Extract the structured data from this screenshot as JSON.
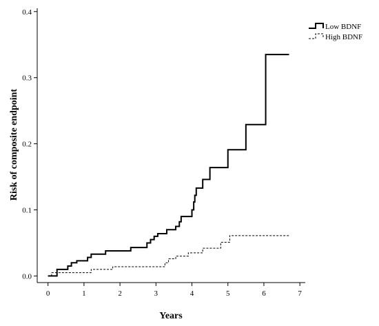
{
  "chart_data": {
    "type": "line",
    "step": true,
    "xlabel": "Years",
    "ylabel": "Risk of composite endpoint",
    "xlim": [
      -0.3,
      7.15
    ],
    "ylim": [
      -0.01,
      0.405
    ],
    "xticks": [
      0,
      1,
      2,
      3,
      4,
      5,
      6,
      7
    ],
    "yticks": [
      0.0,
      0.1,
      0.2,
      0.3,
      0.4
    ],
    "ytick_labels": [
      "0.0",
      "0.1",
      "0.2",
      "0.3",
      "0.4"
    ],
    "grid": false,
    "legend_position": "top-right",
    "series": [
      {
        "name": "Low BDNF",
        "style": "solid-thick",
        "color": "#000000",
        "points": [
          [
            0.0,
            0.0
          ],
          [
            0.25,
            0.0
          ],
          [
            0.25,
            0.01
          ],
          [
            0.55,
            0.01
          ],
          [
            0.55,
            0.015
          ],
          [
            0.65,
            0.015
          ],
          [
            0.65,
            0.02
          ],
          [
            0.8,
            0.02
          ],
          [
            0.8,
            0.023
          ],
          [
            1.1,
            0.023
          ],
          [
            1.1,
            0.028
          ],
          [
            1.2,
            0.028
          ],
          [
            1.2,
            0.033
          ],
          [
            1.6,
            0.033
          ],
          [
            1.6,
            0.038
          ],
          [
            2.3,
            0.038
          ],
          [
            2.3,
            0.043
          ],
          [
            2.75,
            0.043
          ],
          [
            2.75,
            0.05
          ],
          [
            2.85,
            0.05
          ],
          [
            2.85,
            0.055
          ],
          [
            2.95,
            0.055
          ],
          [
            2.95,
            0.06
          ],
          [
            3.05,
            0.06
          ],
          [
            3.05,
            0.064
          ],
          [
            3.3,
            0.064
          ],
          [
            3.3,
            0.07
          ],
          [
            3.55,
            0.07
          ],
          [
            3.55,
            0.075
          ],
          [
            3.65,
            0.075
          ],
          [
            3.65,
            0.082
          ],
          [
            3.7,
            0.082
          ],
          [
            3.7,
            0.09
          ],
          [
            4.0,
            0.09
          ],
          [
            4.0,
            0.1
          ],
          [
            4.05,
            0.1
          ],
          [
            4.05,
            0.112
          ],
          [
            4.08,
            0.112
          ],
          [
            4.08,
            0.122
          ],
          [
            4.12,
            0.122
          ],
          [
            4.12,
            0.133
          ],
          [
            4.3,
            0.133
          ],
          [
            4.3,
            0.146
          ],
          [
            4.5,
            0.146
          ],
          [
            4.5,
            0.164
          ],
          [
            5.0,
            0.164
          ],
          [
            5.0,
            0.191
          ],
          [
            5.5,
            0.191
          ],
          [
            5.5,
            0.229
          ],
          [
            6.05,
            0.229
          ],
          [
            6.05,
            0.335
          ],
          [
            6.7,
            0.335
          ]
        ]
      },
      {
        "name": "High BDNF",
        "style": "dashed-thin",
        "color": "#000000",
        "points": [
          [
            0.0,
            0.0
          ],
          [
            0.1,
            0.0
          ],
          [
            0.1,
            0.005
          ],
          [
            1.2,
            0.005
          ],
          [
            1.2,
            0.01
          ],
          [
            1.8,
            0.01
          ],
          [
            1.8,
            0.014
          ],
          [
            3.25,
            0.014
          ],
          [
            3.25,
            0.02
          ],
          [
            3.35,
            0.02
          ],
          [
            3.35,
            0.026
          ],
          [
            3.55,
            0.026
          ],
          [
            3.55,
            0.03
          ],
          [
            3.9,
            0.03
          ],
          [
            3.9,
            0.035
          ],
          [
            4.3,
            0.035
          ],
          [
            4.3,
            0.042
          ],
          [
            4.8,
            0.042
          ],
          [
            4.8,
            0.051
          ],
          [
            5.05,
            0.051
          ],
          [
            5.05,
            0.061
          ],
          [
            6.7,
            0.061
          ]
        ]
      }
    ]
  }
}
